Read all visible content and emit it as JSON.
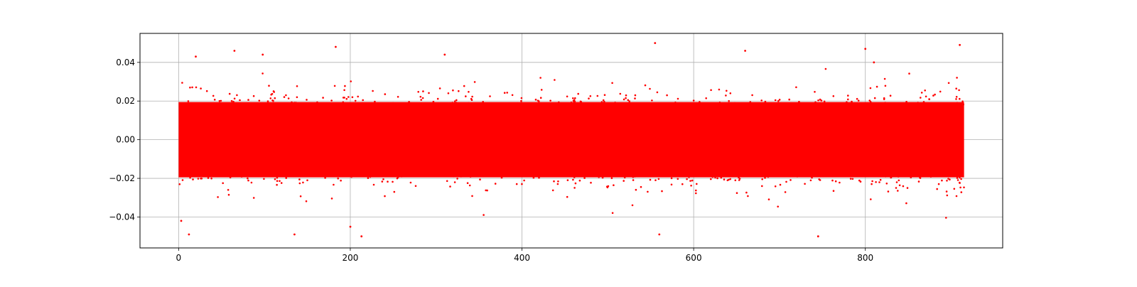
{
  "chart_data": {
    "type": "scatter",
    "title": "",
    "xlabel": "",
    "ylabel": "",
    "xlim": [
      -45,
      960
    ],
    "ylim": [
      -0.056,
      0.055
    ],
    "grid": true,
    "legend": null,
    "x_ticks": [
      {
        "value": 0,
        "label": "0"
      },
      {
        "value": 200,
        "label": "200"
      },
      {
        "value": 400,
        "label": "400"
      },
      {
        "value": 600,
        "label": "600"
      },
      {
        "value": 800,
        "label": "800"
      }
    ],
    "y_ticks": [
      {
        "value": -0.04,
        "label": "−0.04"
      },
      {
        "value": -0.02,
        "label": "−0.02"
      },
      {
        "value": 0.0,
        "label": "0.00"
      },
      {
        "value": 0.02,
        "label": "0.02"
      },
      {
        "value": 0.04,
        "label": "0.04"
      }
    ],
    "series": [
      {
        "color": "#ff0000",
        "marker": "dot",
        "x_range": [
          0,
          915
        ],
        "y_center": 0.0,
        "y_std_approx": 0.0095,
        "y_observed_range": [
          -0.051,
          0.05
        ],
        "notable_points": [
          {
            "x": 20,
            "y": 0.043
          },
          {
            "x": 65,
            "y": 0.046
          },
          {
            "x": 98,
            "y": 0.044
          },
          {
            "x": 183,
            "y": 0.048
          },
          {
            "x": 200,
            "y": -0.045
          },
          {
            "x": 213,
            "y": -0.05
          },
          {
            "x": 310,
            "y": 0.044
          },
          {
            "x": 555,
            "y": 0.05
          },
          {
            "x": 560,
            "y": -0.049
          },
          {
            "x": 660,
            "y": 0.046
          },
          {
            "x": 745,
            "y": -0.05
          },
          {
            "x": 800,
            "y": 0.047
          },
          {
            "x": 810,
            "y": 0.04
          },
          {
            "x": 910,
            "y": 0.049
          },
          {
            "x": 3,
            "y": -0.042
          },
          {
            "x": 12,
            "y": -0.049
          },
          {
            "x": 135,
            "y": -0.049
          }
        ]
      }
    ]
  }
}
